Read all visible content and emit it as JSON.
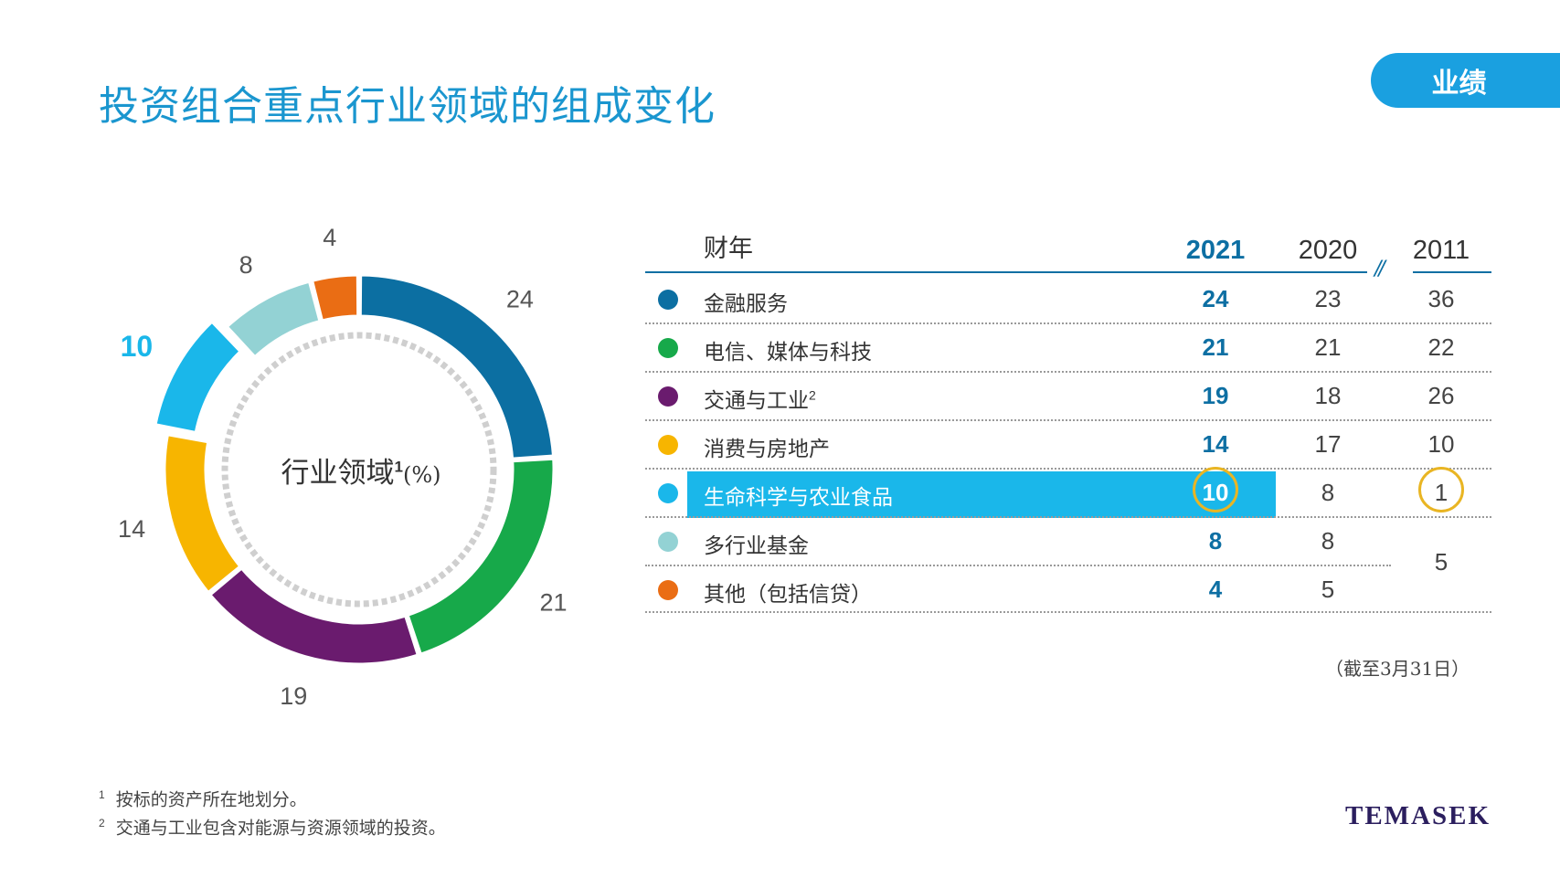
{
  "title": "投资组合重点行业领域的组成变化",
  "section_tag": "业绩",
  "center_label": {
    "text": "行业领域",
    "sup": "1",
    "unit": "(%)"
  },
  "table": {
    "fy_label": "财年",
    "years": [
      "2021",
      "2020",
      "2011"
    ],
    "rows": [
      {
        "name": "金融服务",
        "sup": "",
        "v2021": "24",
        "v2020": "23",
        "v2011": "36",
        "color": "#0c6fa2"
      },
      {
        "name": "电信、媒体与科技",
        "sup": "",
        "v2021": "21",
        "v2020": "21",
        "v2011": "22",
        "color": "#17a94a"
      },
      {
        "name": "交通与工业",
        "sup": "2",
        "v2021": "19",
        "v2020": "18",
        "v2011": "26",
        "color": "#6a1b6e"
      },
      {
        "name": "消费与房地产",
        "sup": "",
        "v2021": "14",
        "v2020": "17",
        "v2011": "10",
        "color": "#f7b500"
      },
      {
        "name": "生命科学与农业食品",
        "sup": "",
        "v2021": "10",
        "v2020": "8",
        "v2011": "1",
        "color": "#1ab7ea"
      },
      {
        "name": "多行业基金",
        "sup": "",
        "v2021": "8",
        "v2020": "8",
        "v2011": "",
        "color": "#93d2d4"
      },
      {
        "name": "其他（包括信贷）",
        "sup": "",
        "v2021": "4",
        "v2020": "5",
        "v2011": "",
        "color": "#ea6d14"
      }
    ],
    "merged_2011": "5",
    "note": "（截至3月31日）"
  },
  "footnotes": [
    {
      "sup": "1",
      "text": "按标的资产所在地划分。"
    },
    {
      "sup": "2",
      "text": "交通与工业包含对能源与资源领域的投资。"
    }
  ],
  "logo": "TEMASEK",
  "chart_data": {
    "type": "pie",
    "title": "行业领域1(%)",
    "categories": [
      "金融服务",
      "电信、媒体与科技",
      "交通与工业",
      "消费与房地产",
      "生命科学与农业食品",
      "多行业基金",
      "其他（包括信贷）"
    ],
    "values": [
      24,
      21,
      19,
      14,
      10,
      8,
      4
    ],
    "labels": [
      "24",
      "21",
      "19",
      "14",
      "10",
      "8",
      "4"
    ],
    "colors": [
      "#0c6fa2",
      "#17a94a",
      "#6a1b6e",
      "#f7b500",
      "#1ab7ea",
      "#93d2d4",
      "#ea6d14"
    ],
    "highlight": "生命科学与农业食品",
    "donut": true
  }
}
